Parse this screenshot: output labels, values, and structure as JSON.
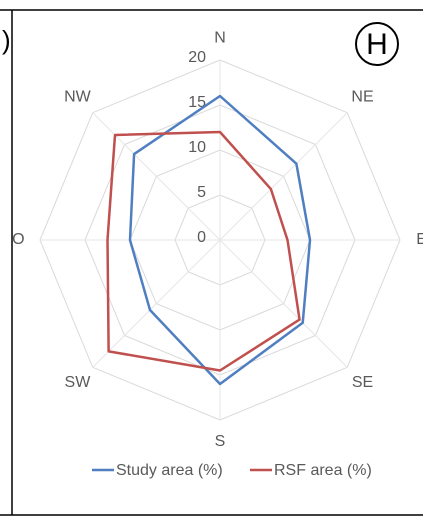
{
  "panel_fragment": ")",
  "panel_label": "H",
  "chart_data": {
    "type": "radar",
    "categories": [
      "N",
      "NE",
      "E",
      "SE",
      "S",
      "SW",
      "O",
      "NW"
    ],
    "series": [
      {
        "name": "Study area (%)",
        "color": "#4f7fc1",
        "values": [
          16,
          12,
          10,
          13,
          16,
          11,
          10,
          13.5
        ]
      },
      {
        "name": "RSF area (%)",
        "color": "#c0504d",
        "values": [
          12,
          8,
          7.5,
          12.5,
          14.5,
          17.5,
          12.5,
          16.5
        ]
      }
    ],
    "ylim": [
      0,
      20
    ],
    "yticks": [
      0,
      5,
      10,
      15,
      20
    ],
    "grid": true,
    "legend": "bottom"
  }
}
